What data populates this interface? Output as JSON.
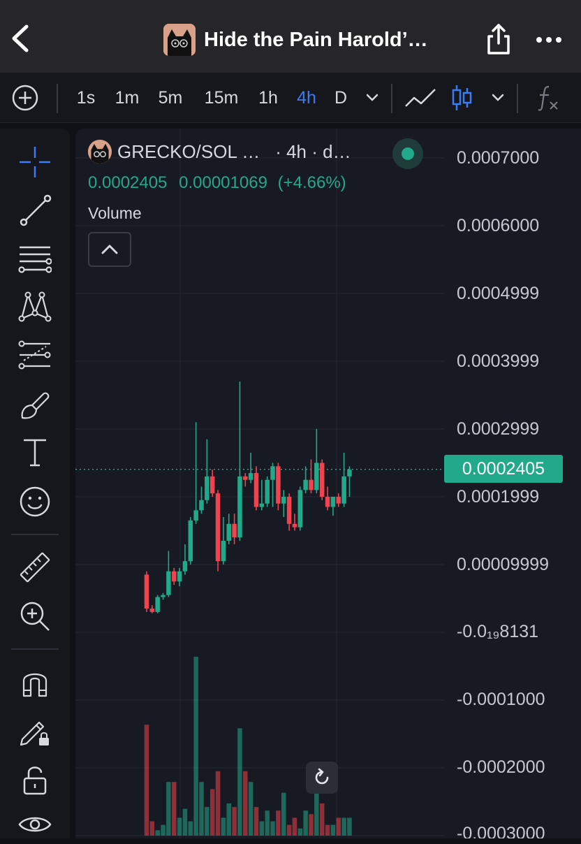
{
  "header": {
    "title": "Hide the Pain Harold’…"
  },
  "toolbar": {
    "intervals": [
      "1s",
      "1m",
      "5m",
      "15m",
      "1h",
      "4h",
      "D"
    ],
    "active_interval": "4h"
  },
  "legend": {
    "symbol": "GRECKO/SOL …",
    "interval_info": "· 4h · d…",
    "price": "0.0002405",
    "change": "0.00001069",
    "change_percent": "(+4.66%)",
    "volume_label": "Volume"
  },
  "price_axis": {
    "labels": [
      "0.0007000",
      "0.0006000",
      "0.0004999",
      "0.0003999",
      "0.0002999",
      "0.0001999",
      "0.00009999",
      "-0.0₁₉8131",
      "-0.0001000",
      "-0.0002000",
      "-0.0003000"
    ]
  },
  "current_price_tag": "0.0002405",
  "colors": {
    "up": "#22a98a",
    "down": "#f0434f",
    "accent": "#3d7bf5"
  },
  "chart_data": {
    "type": "candlestick",
    "interval": "4h",
    "ylim": [
      -0.0003,
      0.0007
    ],
    "last_price": 0.0002405,
    "candles": [
      {
        "o": 8.5e-05,
        "h": 9e-05,
        "c": 3.5e-05,
        "l": 3e-05
      },
      {
        "o": 3.5e-05,
        "h": 4e-05,
        "c": 3e-05,
        "l": 2.8e-05
      },
      {
        "o": 3e-05,
        "h": 5.5e-05,
        "c": 5.2e-05,
        "l": 2.8e-05
      },
      {
        "o": 5.2e-05,
        "h": 5.8e-05,
        "c": 5.5e-05,
        "l": 4.8e-05
      },
      {
        "o": 5.5e-05,
        "h": 0.00012,
        "c": 9e-05,
        "l": 5.2e-05
      },
      {
        "o": 9e-05,
        "h": 9.5e-05,
        "c": 7.5e-05,
        "l": 7e-05
      },
      {
        "o": 7.5e-05,
        "h": 9.5e-05,
        "c": 9e-05,
        "l": 6.8e-05
      },
      {
        "o": 9e-05,
        "h": 0.00013,
        "c": 0.000105,
        "l": 8.5e-05
      },
      {
        "o": 0.000105,
        "h": 0.00017,
        "c": 0.000165,
        "l": 0.0001
      },
      {
        "o": 0.000165,
        "h": 0.00031,
        "c": 0.00018,
        "l": 0.00016
      },
      {
        "o": 0.00018,
        "h": 0.000215,
        "c": 0.000195,
        "l": 0.000175
      },
      {
        "o": 0.000195,
        "h": 0.000285,
        "c": 0.00023,
        "l": 0.00019
      },
      {
        "o": 0.00023,
        "h": 0.00024,
        "c": 0.000205,
        "l": 0.0002
      },
      {
        "o": 0.000205,
        "h": 0.00021,
        "c": 0.000105,
        "l": 9e-05
      },
      {
        "o": 0.000105,
        "h": 0.00017,
        "c": 0.000135,
        "l": 0.0001
      },
      {
        "o": 0.000135,
        "h": 0.000175,
        "c": 0.00016,
        "l": 0.00013
      },
      {
        "o": 0.00016,
        "h": 0.000175,
        "c": 0.00014,
        "l": 0.00013
      },
      {
        "o": 0.00014,
        "h": 0.00037,
        "c": 0.00023,
        "l": 0.000135
      },
      {
        "o": 0.00023,
        "h": 0.000235,
        "c": 0.000225,
        "l": 0.000215
      },
      {
        "o": 0.000225,
        "h": 0.000265,
        "c": 0.000235,
        "l": 0.00022
      },
      {
        "o": 0.000235,
        "h": 0.000245,
        "c": 0.000185,
        "l": 0.00018
      },
      {
        "o": 0.000185,
        "h": 0.000225,
        "c": 0.00019,
        "l": 0.00018
      },
      {
        "o": 0.00019,
        "h": 0.00023,
        "c": 0.000225,
        "l": 0.000185
      },
      {
        "o": 0.000225,
        "h": 0.00025,
        "c": 0.000245,
        "l": 0.000185
      },
      {
        "o": 0.000245,
        "h": 0.00025,
        "c": 0.00019,
        "l": 0.00018
      },
      {
        "o": 0.00019,
        "h": 0.00021,
        "c": 0.0002,
        "l": 0.00017
      },
      {
        "o": 0.0002,
        "h": 0.000205,
        "c": 0.00016,
        "l": 0.00015
      },
      {
        "o": 0.00016,
        "h": 0.000175,
        "c": 0.000155,
        "l": 0.00015
      },
      {
        "o": 0.000155,
        "h": 0.000215,
        "c": 0.00021,
        "l": 0.00015
      },
      {
        "o": 0.00021,
        "h": 0.000245,
        "c": 0.000225,
        "l": 0.000205
      },
      {
        "o": 0.000225,
        "h": 0.000255,
        "c": 0.00021,
        "l": 0.000205
      },
      {
        "o": 0.00021,
        "h": 0.0003,
        "c": 0.00025,
        "l": 0.000205
      },
      {
        "o": 0.00025,
        "h": 0.000255,
        "c": 0.0002,
        "l": 0.000195
      },
      {
        "o": 0.0002,
        "h": 0.000215,
        "c": 0.000185,
        "l": 0.00018
      },
      {
        "o": 0.000185,
        "h": 0.0002,
        "c": 0.0002,
        "l": 0.000172
      },
      {
        "o": 0.0002,
        "h": 0.000205,
        "c": 0.00019,
        "l": 0.000185
      },
      {
        "o": 0.00019,
        "h": 0.000265,
        "c": 0.00023,
        "l": 0.000185
      },
      {
        "o": 0.00023,
        "h": 0.000245,
        "c": 0.00024,
        "l": 0.0002
      }
    ],
    "volumes": [
      0.62,
      0.08,
      0.03,
      0.06,
      0.3,
      0.3,
      0.1,
      0.15,
      0.08,
      1.0,
      0.3,
      0.16,
      0.26,
      0.36,
      0.1,
      0.18,
      0.16,
      0.6,
      0.36,
      0.3,
      0.16,
      0.08,
      0.14,
      0.08,
      0.14,
      0.24,
      0.06,
      0.1,
      0.04,
      0.14,
      0.12,
      0.28,
      0.18,
      0.06,
      0.06,
      0.1,
      0.1,
      0.1
    ]
  }
}
